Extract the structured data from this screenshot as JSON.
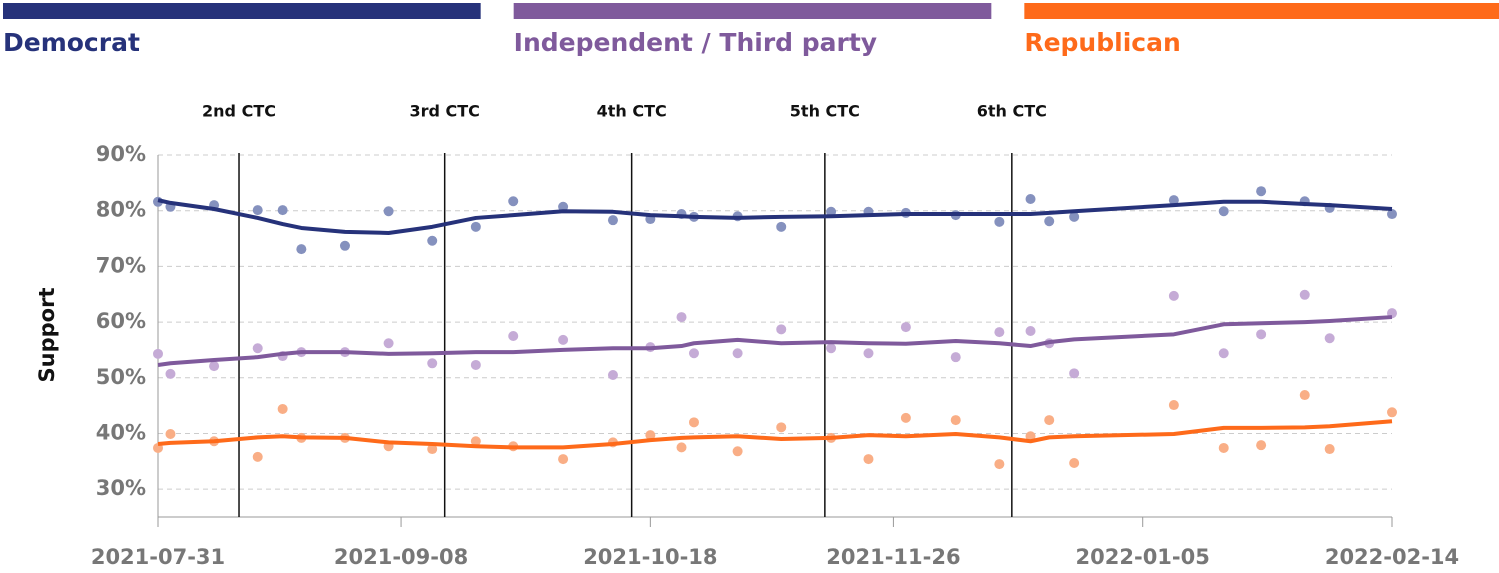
{
  "chart_data": {
    "type": "scatter-trend",
    "y_label": "Support",
    "x": [
      "2021-07-31",
      "2021-08-02",
      "2021-08-09",
      "2021-08-16",
      "2021-08-20",
      "2021-08-23",
      "2021-08-30",
      "2021-09-06",
      "2021-09-13",
      "2021-09-20",
      "2021-09-26",
      "2021-10-04",
      "2021-10-12",
      "2021-10-18",
      "2021-10-23",
      "2021-10-25",
      "2021-11-01",
      "2021-11-08",
      "2021-11-16",
      "2021-11-22",
      "2021-11-28",
      "2021-12-06",
      "2021-12-13",
      "2021-12-18",
      "2021-12-21",
      "2021-12-25",
      "2022-01-10",
      "2022-01-18",
      "2022-01-24",
      "2022-01-31",
      "2022-02-04",
      "2022-02-14"
    ],
    "series": [
      {
        "name": "Democrat",
        "color": "#26327a",
        "point_color": "#8591be",
        "values": [
          81.6,
          80.7,
          81.0,
          80.1,
          80.1,
          73.1,
          73.7,
          79.9,
          74.6,
          77.1,
          81.7,
          80.7,
          78.3,
          78.5,
          79.4,
          78.9,
          79.0,
          77.1,
          79.8,
          79.8,
          79.6,
          79.2,
          78.0,
          82.1,
          78.1,
          78.9,
          81.9,
          79.9,
          83.5,
          81.7,
          80.5,
          79.4
        ],
        "trend": [
          81.9,
          81.4,
          80.3,
          78.7,
          77.6,
          76.9,
          76.2,
          76.0,
          77.1,
          78.7,
          79.2,
          79.9,
          79.8,
          79.2,
          79.0,
          78.9,
          78.7,
          78.9,
          79.0,
          79.2,
          79.4,
          79.4,
          79.4,
          79.4,
          79.6,
          79.9,
          81.0,
          81.6,
          81.6,
          81.2,
          81.0,
          80.3
        ]
      },
      {
        "name": "Independent / Third party",
        "color": "#7f5a9c",
        "point_color": "#c5abd6",
        "values": [
          54.3,
          50.7,
          52.1,
          55.3,
          53.9,
          54.6,
          54.6,
          56.2,
          52.6,
          52.3,
          57.5,
          56.8,
          50.5,
          55.5,
          60.9,
          54.4,
          54.4,
          58.7,
          55.3,
          54.4,
          59.1,
          53.7,
          58.2,
          58.4,
          56.2,
          50.8,
          64.7,
          54.4,
          57.8,
          64.9,
          57.1,
          61.6
        ],
        "trend": [
          52.3,
          52.6,
          53.2,
          53.7,
          54.3,
          54.6,
          54.6,
          54.3,
          54.4,
          54.6,
          54.6,
          55.0,
          55.3,
          55.3,
          55.7,
          56.2,
          56.8,
          56.2,
          56.4,
          56.2,
          56.1,
          56.6,
          56.2,
          55.7,
          56.4,
          56.9,
          57.8,
          59.6,
          59.8,
          60.0,
          60.2,
          60.9
        ]
      },
      {
        "name": "Republican",
        "color": "#fe6a1a",
        "point_color": "#f9ae86",
        "values": [
          37.4,
          39.9,
          38.6,
          35.8,
          44.4,
          39.2,
          39.2,
          37.7,
          37.2,
          38.6,
          37.7,
          35.4,
          38.4,
          39.7,
          37.5,
          42.0,
          36.8,
          41.1,
          39.2,
          35.4,
          42.8,
          42.4,
          34.5,
          39.5,
          42.4,
          34.7,
          45.1,
          37.4,
          37.9,
          46.9,
          37.2,
          43.8
        ],
        "trend": [
          38.1,
          38.3,
          38.6,
          39.3,
          39.5,
          39.3,
          39.2,
          38.4,
          38.1,
          37.7,
          37.5,
          37.5,
          38.1,
          38.8,
          39.2,
          39.3,
          39.5,
          39.0,
          39.2,
          39.7,
          39.5,
          39.9,
          39.3,
          38.6,
          39.3,
          39.5,
          39.9,
          41.0,
          41.0,
          41.1,
          41.3,
          42.2
        ]
      }
    ],
    "events": [
      {
        "date": "2021-08-13",
        "label": "2nd CTC"
      },
      {
        "date": "2021-09-15",
        "label": "3rd CTC"
      },
      {
        "date": "2021-10-15",
        "label": "4th CTC"
      },
      {
        "date": "2021-11-15",
        "label": "5th CTC"
      },
      {
        "date": "2021-12-15",
        "label": "6th CTC"
      }
    ],
    "xlim": [
      "2021-07-31",
      "2022-02-14"
    ],
    "xticks": [
      "2021-07-31",
      "2021-09-08",
      "2021-10-18",
      "2021-11-26",
      "2022-01-05",
      "2022-02-14"
    ],
    "ylim": [
      25,
      90
    ],
    "yticks": [
      {
        "value": 30,
        "label": "30%"
      },
      {
        "value": 40,
        "label": "40%"
      },
      {
        "value": 50,
        "label": "50%"
      },
      {
        "value": 60,
        "label": "60%"
      },
      {
        "value": 70,
        "label": "70%"
      },
      {
        "value": 80,
        "label": "80%"
      },
      {
        "value": 90,
        "label": "90%"
      }
    ],
    "grid": true
  }
}
